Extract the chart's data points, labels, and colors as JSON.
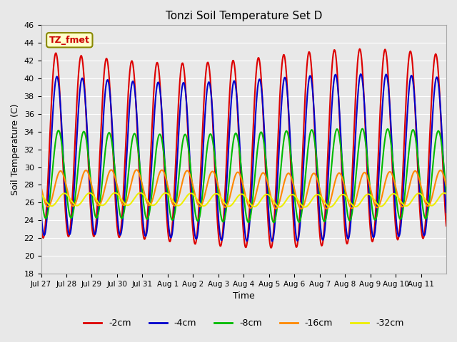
{
  "title": "Tonzi Soil Temperature Set D",
  "xlabel": "Time",
  "ylabel": "Soil Temperature (C)",
  "ylim": [
    18,
    46
  ],
  "yticks": [
    18,
    20,
    22,
    24,
    26,
    28,
    30,
    32,
    34,
    36,
    38,
    40,
    42,
    44,
    46
  ],
  "xtick_labels": [
    "Jul 27",
    "Jul 28",
    "Jul 29",
    "Jul 30",
    "Jul 31",
    "Aug 1",
    "Aug 2",
    "Aug 3",
    "Aug 4",
    "Aug 5",
    "Aug 6",
    "Aug 7",
    "Aug 8",
    "Aug 9",
    "Aug 10",
    "Aug 11"
  ],
  "series": {
    "-2cm": {
      "color": "#dd0000",
      "lw": 1.5
    },
    "-4cm": {
      "color": "#0000cc",
      "lw": 1.5
    },
    "-8cm": {
      "color": "#00bb00",
      "lw": 1.5
    },
    "-16cm": {
      "color": "#ff8800",
      "lw": 1.5
    },
    "-32cm": {
      "color": "#eeee00",
      "lw": 1.5
    }
  },
  "legend_label": "TZ_fmet",
  "background_color": "#e8e8e8",
  "axes_bg_color": "#e8e8e8",
  "num_days": 16,
  "samples_per_day": 48
}
